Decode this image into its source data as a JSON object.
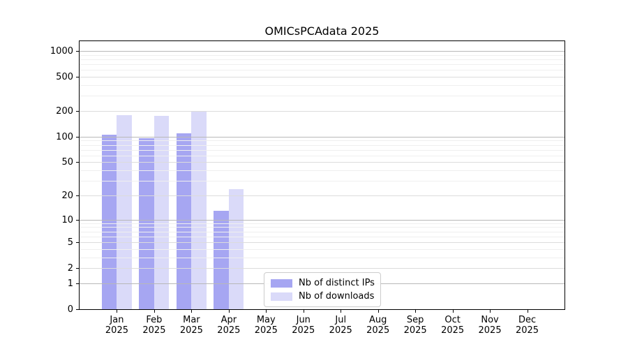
{
  "title": "OMICsPCAdata 2025",
  "chart_data": {
    "type": "bar",
    "title": "OMICsPCAdata 2025",
    "categories": [
      "Jan",
      "Feb",
      "Mar",
      "Apr",
      "May",
      "Jun",
      "Jul",
      "Aug",
      "Sep",
      "Oct",
      "Nov",
      "Dec"
    ],
    "category_year": "2025",
    "series": [
      {
        "name": "Nb of distinct IPs",
        "color": "#a6a6f2",
        "values": [
          106,
          96,
          109,
          13,
          0,
          0,
          0,
          0,
          0,
          0,
          0,
          0
        ]
      },
      {
        "name": "Nb of downloads",
        "color": "#dadaf9",
        "values": [
          180,
          174,
          200,
          24,
          0,
          0,
          0,
          0,
          0,
          0,
          0,
          0
        ]
      }
    ],
    "xlabel": "",
    "ylabel": "",
    "y_axis": {
      "scale": "log10(1+x)",
      "ticks": [
        0,
        1,
        2,
        5,
        10,
        20,
        50,
        100,
        200,
        500,
        1000
      ],
      "decade_ticks": [
        1,
        10,
        100,
        1000
      ],
      "minor_gridlines": [
        3,
        4,
        6,
        7,
        8,
        9,
        30,
        40,
        60,
        70,
        80,
        90,
        300,
        400,
        600,
        700,
        800,
        900
      ],
      "max": 1300
    },
    "grid": "horizontal",
    "legend": {
      "position": "lower center",
      "items": [
        "Nb of distinct IPs",
        "Nb of downloads"
      ]
    },
    "colors": {
      "axis": "#000000",
      "decade_grid": "#b8b8b8",
      "major_grid": "#dcdcdc",
      "minor_grid": "#efefef"
    }
  }
}
